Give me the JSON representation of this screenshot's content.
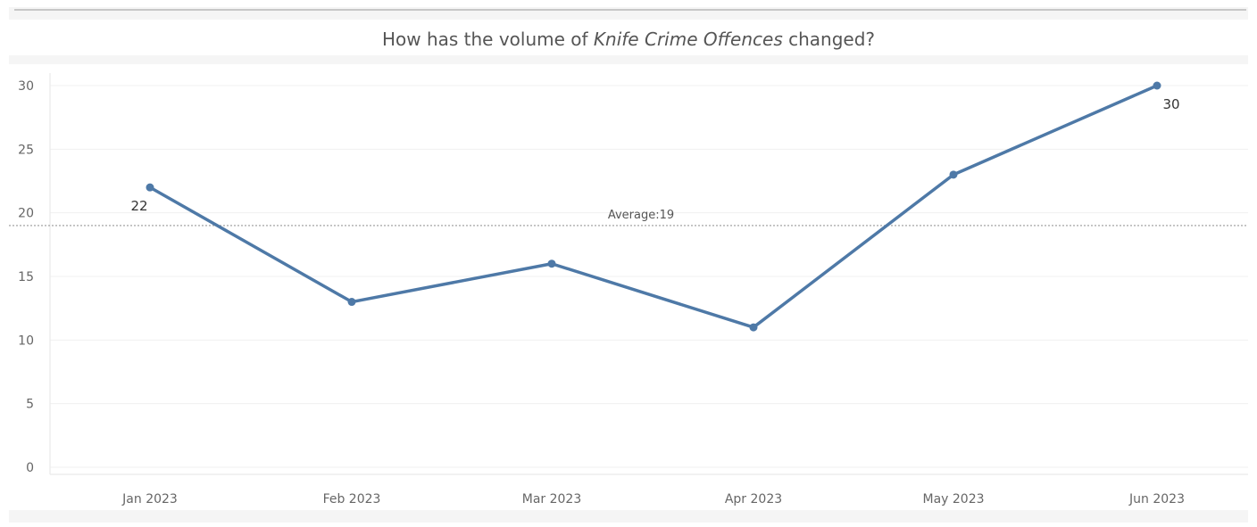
{
  "chart_data": {
    "type": "line",
    "title_prefix": "How has the volume of ",
    "title_emphasis": "Knife Crime Offences",
    "title_suffix": " changed?",
    "xlabel": "",
    "ylabel": "",
    "categories": [
      "Jan 2023",
      "Feb 2023",
      "Mar 2023",
      "Apr 2023",
      "May 2023",
      "Jun 2023"
    ],
    "values": [
      22,
      13,
      16,
      11,
      23,
      30
    ],
    "data_labels": [
      {
        "index": 0,
        "text": "22"
      },
      {
        "index": 5,
        "text": "30"
      }
    ],
    "y_ticks": [
      0,
      5,
      10,
      15,
      20,
      25,
      30
    ],
    "ylim": [
      0,
      30
    ],
    "reference_line": {
      "value": 19,
      "label": "Average:19",
      "style": "dotted"
    },
    "grid": true,
    "line_color": "#4e79a7",
    "legend": "none"
  }
}
